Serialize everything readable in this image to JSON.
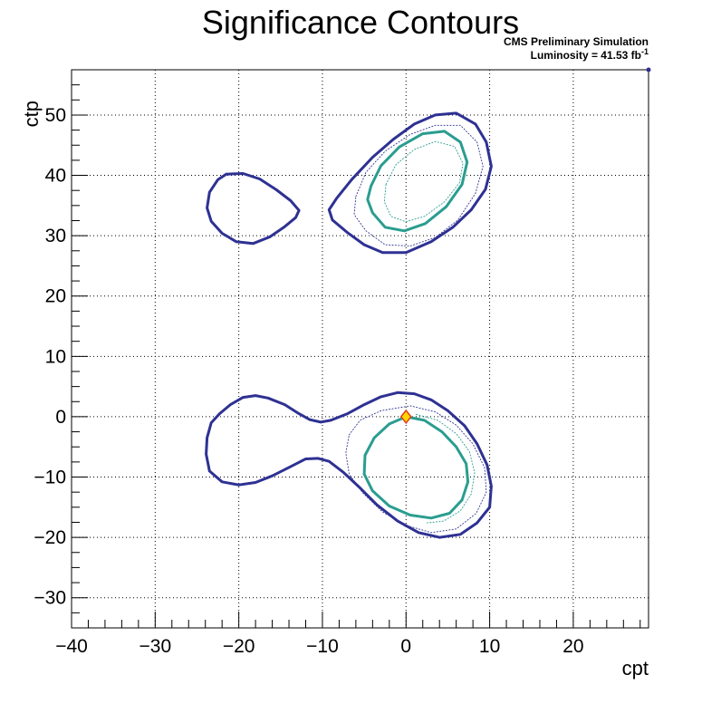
{
  "chart_data": {
    "type": "contour",
    "title": "Significance Contours",
    "annotation": {
      "line1": "CMS Preliminary Simulation",
      "line2_prefix": "Luminosity = 41.53 fb",
      "line2_sup": "-1"
    },
    "xlabel": "cpt",
    "ylabel": "ctp",
    "xlim": [
      -40,
      29
    ],
    "ylim": [
      -35,
      57.5
    ],
    "xticks": [
      -40,
      -30,
      -20,
      -10,
      0,
      10,
      20
    ],
    "xtick_labels": [
      "−40",
      "−30",
      "−20",
      "−10",
      "0",
      "10",
      "20"
    ],
    "yticks": [
      -30,
      -20,
      -10,
      0,
      10,
      20,
      30,
      40,
      50
    ],
    "ytick_labels": [
      "−30",
      "−20",
      "−10",
      "0",
      "10",
      "20",
      "30",
      "40",
      "50"
    ],
    "grid": true,
    "colors": {
      "navy": "#2e3192",
      "teal": "#2a9d8f",
      "marker_fill": "#ffd600",
      "marker_edge": "#e03a1e"
    },
    "contours": [
      {
        "id": "upper-left-outer",
        "style": "thick",
        "color": "navy",
        "points": [
          [
            -21.5,
            40.2
          ],
          [
            -19.5,
            40.3
          ],
          [
            -17.5,
            39.4
          ],
          [
            -15.5,
            37.6
          ],
          [
            -13.8,
            35.8
          ],
          [
            -12.8,
            34.2
          ],
          [
            -13.2,
            33.0
          ],
          [
            -14.6,
            31.4
          ],
          [
            -16.3,
            29.8
          ],
          [
            -18.3,
            28.7
          ],
          [
            -20.3,
            29.0
          ],
          [
            -22.0,
            30.4
          ],
          [
            -23.3,
            32.4
          ],
          [
            -23.8,
            34.6
          ],
          [
            -23.5,
            37.2
          ],
          [
            -22.5,
            39.3
          ],
          [
            -21.5,
            40.2
          ]
        ]
      },
      {
        "id": "upper-right-outer",
        "style": "thick",
        "color": "navy",
        "points": [
          [
            -8.3,
            36.2
          ],
          [
            -6.5,
            39.3
          ],
          [
            -4.0,
            43.0
          ],
          [
            -1.5,
            46.0
          ],
          [
            1.0,
            48.5
          ],
          [
            3.5,
            50.0
          ],
          [
            6.0,
            50.3
          ],
          [
            8.3,
            48.5
          ],
          [
            9.6,
            45.5
          ],
          [
            10.2,
            41.5
          ],
          [
            9.5,
            37.7
          ],
          [
            7.8,
            34.3
          ],
          [
            5.6,
            31.4
          ],
          [
            3.0,
            29.0
          ],
          [
            0.0,
            27.2
          ],
          [
            -2.8,
            27.2
          ],
          [
            -5.0,
            28.5
          ],
          [
            -7.0,
            30.5
          ],
          [
            -8.8,
            32.6
          ],
          [
            -9.2,
            34.3
          ],
          [
            -8.3,
            36.2
          ]
        ]
      },
      {
        "id": "upper-right-inner",
        "style": "thick",
        "color": "teal",
        "points": [
          [
            -4.2,
            38.2
          ],
          [
            -3.0,
            41.6
          ],
          [
            -0.8,
            44.7
          ],
          [
            2.0,
            46.9
          ],
          [
            4.6,
            47.3
          ],
          [
            6.5,
            45.5
          ],
          [
            7.3,
            42.2
          ],
          [
            6.7,
            38.5
          ],
          [
            4.8,
            34.8
          ],
          [
            2.3,
            32.0
          ],
          [
            -0.2,
            30.8
          ],
          [
            -2.5,
            31.4
          ],
          [
            -4.0,
            33.8
          ],
          [
            -4.6,
            36.0
          ],
          [
            -4.2,
            38.2
          ]
        ]
      },
      {
        "id": "upper-right-dash1",
        "style": "dotted",
        "color": "navy",
        "points": [
          [
            -6.0,
            36.5
          ],
          [
            -4.8,
            40.5
          ],
          [
            -2.5,
            44.0
          ],
          [
            0.5,
            46.8
          ],
          [
            3.5,
            48.3
          ],
          [
            6.5,
            48.3
          ],
          [
            8.5,
            45.5
          ],
          [
            9.2,
            41.5
          ],
          [
            8.3,
            37.0
          ],
          [
            6.2,
            32.6
          ],
          [
            3.5,
            29.7
          ],
          [
            0.5,
            28.3
          ],
          [
            -2.5,
            28.5
          ],
          [
            -4.8,
            30.8
          ],
          [
            -6.2,
            33.5
          ],
          [
            -6.0,
            36.5
          ]
        ]
      },
      {
        "id": "upper-right-dash2",
        "style": "dotted",
        "color": "teal",
        "points": [
          [
            -2.4,
            38.5
          ],
          [
            -1.2,
            41.8
          ],
          [
            1.0,
            44.3
          ],
          [
            3.5,
            45.6
          ],
          [
            5.8,
            44.8
          ],
          [
            6.8,
            42.0
          ],
          [
            6.4,
            38.8
          ],
          [
            4.6,
            35.6
          ],
          [
            2.2,
            33.2
          ],
          [
            0.0,
            32.3
          ],
          [
            -1.8,
            33.2
          ],
          [
            -2.6,
            35.6
          ],
          [
            -2.4,
            38.5
          ]
        ]
      },
      {
        "id": "lower-outer",
        "style": "thick",
        "color": "navy",
        "points": [
          [
            -23.3,
            -1.0
          ],
          [
            -22.3,
            0.5
          ],
          [
            -21.0,
            2.0
          ],
          [
            -19.5,
            3.2
          ],
          [
            -18.0,
            3.5
          ],
          [
            -16.5,
            3.1
          ],
          [
            -14.5,
            2.0
          ],
          [
            -12.8,
            0.5
          ],
          [
            -11.5,
            -0.5
          ],
          [
            -10.2,
            -0.9
          ],
          [
            -9.0,
            -0.6
          ],
          [
            -7.0,
            0.5
          ],
          [
            -5.0,
            2.0
          ],
          [
            -3.0,
            3.3
          ],
          [
            -1.0,
            4.0
          ],
          [
            1.0,
            3.8
          ],
          [
            3.0,
            2.8
          ],
          [
            5.0,
            1.0
          ],
          [
            7.0,
            -1.5
          ],
          [
            8.5,
            -4.5
          ],
          [
            9.7,
            -8.0
          ],
          [
            10.2,
            -11.5
          ],
          [
            10.0,
            -15.0
          ],
          [
            8.5,
            -17.6
          ],
          [
            6.5,
            -19.5
          ],
          [
            4.0,
            -20.0
          ],
          [
            1.5,
            -19.2
          ],
          [
            -1.0,
            -17.3
          ],
          [
            -3.5,
            -14.6
          ],
          [
            -5.5,
            -11.8
          ],
          [
            -7.5,
            -9.2
          ],
          [
            -9.2,
            -7.4
          ],
          [
            -10.5,
            -6.9
          ],
          [
            -12.0,
            -7.0
          ],
          [
            -14.0,
            -8.4
          ],
          [
            -16.0,
            -9.8
          ],
          [
            -18.0,
            -10.9
          ],
          [
            -20.0,
            -11.3
          ],
          [
            -22.0,
            -10.8
          ],
          [
            -23.5,
            -9.0
          ],
          [
            -23.9,
            -6.2
          ],
          [
            -23.8,
            -3.5
          ],
          [
            -23.3,
            -1.0
          ]
        ]
      },
      {
        "id": "lower-inner",
        "style": "thick",
        "color": "teal",
        "points": [
          [
            0.0,
            0.0
          ],
          [
            2.2,
            -0.6
          ],
          [
            4.3,
            -2.5
          ],
          [
            6.0,
            -5.0
          ],
          [
            7.2,
            -7.8
          ],
          [
            7.4,
            -10.8
          ],
          [
            6.7,
            -13.8
          ],
          [
            5.2,
            -16.0
          ],
          [
            3.0,
            -16.8
          ],
          [
            0.5,
            -16.3
          ],
          [
            -2.0,
            -14.8
          ],
          [
            -4.0,
            -12.3
          ],
          [
            -5.0,
            -9.5
          ],
          [
            -4.9,
            -6.4
          ],
          [
            -3.8,
            -3.5
          ],
          [
            -2.0,
            -1.2
          ],
          [
            0.0,
            0.0
          ]
        ]
      },
      {
        "id": "lower-dash1",
        "style": "dotted",
        "color": "navy",
        "points": [
          [
            -6.8,
            -3.0
          ],
          [
            -5.5,
            -0.6
          ],
          [
            -3.0,
            1.0
          ],
          [
            0.5,
            1.8
          ],
          [
            3.5,
            0.8
          ],
          [
            6.0,
            -1.4
          ],
          [
            8.0,
            -4.5
          ],
          [
            9.4,
            -8.5
          ],
          [
            9.6,
            -12.5
          ],
          [
            8.4,
            -16.0
          ],
          [
            6.0,
            -18.6
          ],
          [
            3.0,
            -19.2
          ],
          [
            0.0,
            -18.0
          ],
          [
            -2.8,
            -15.8
          ],
          [
            -5.2,
            -12.6
          ],
          [
            -6.8,
            -9.5
          ],
          [
            -7.2,
            -6.0
          ],
          [
            -6.8,
            -3.0
          ]
        ]
      },
      {
        "id": "lower-dash2",
        "style": "dotted",
        "color": "teal",
        "points": [
          [
            1.2,
            0.4
          ],
          [
            3.8,
            -0.6
          ],
          [
            6.0,
            -2.8
          ],
          [
            7.6,
            -5.8
          ],
          [
            8.2,
            -9.3
          ],
          [
            7.8,
            -12.8
          ],
          [
            6.5,
            -15.6
          ],
          [
            4.5,
            -17.3
          ],
          [
            2.5,
            -17.6
          ]
        ]
      }
    ],
    "marker": {
      "x": 0,
      "y": 0
    }
  }
}
